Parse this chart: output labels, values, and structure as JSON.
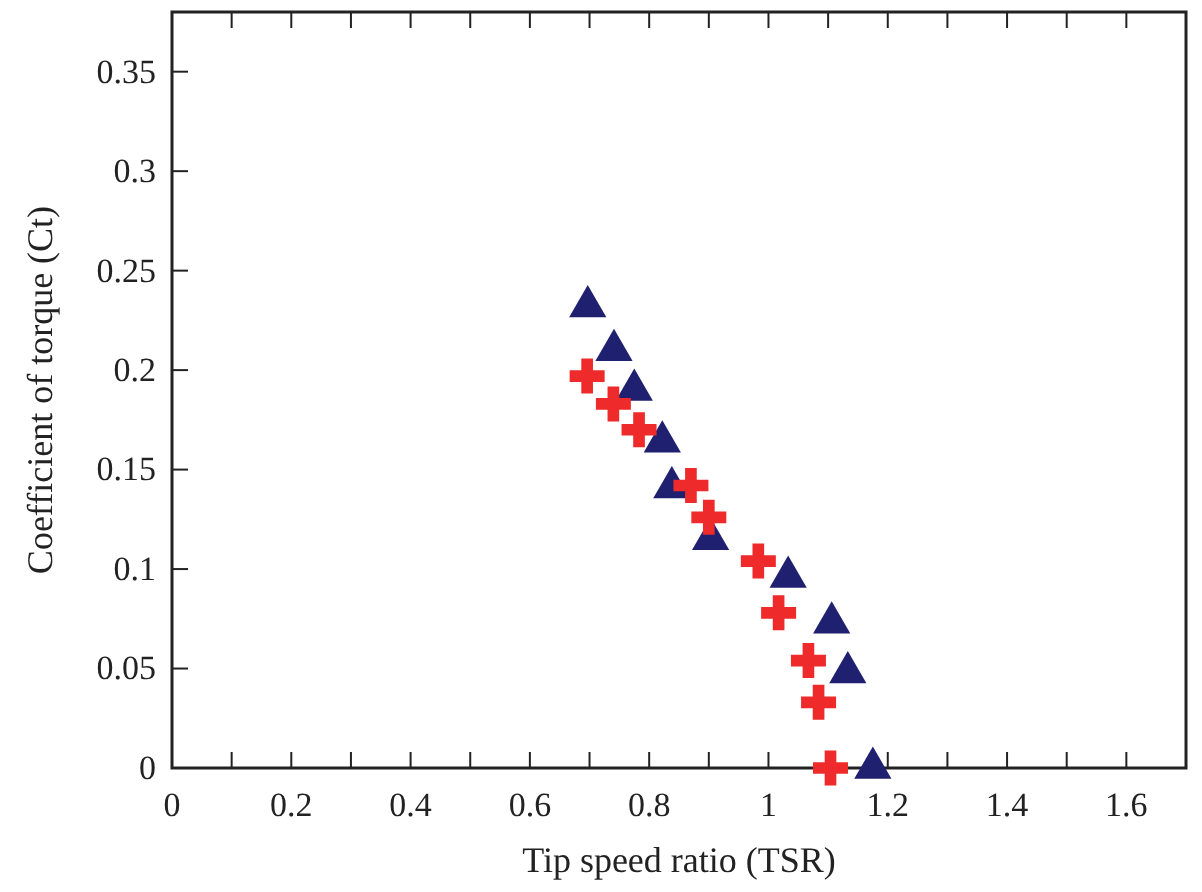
{
  "chart_data": {
    "type": "scatter",
    "xlabel": "Tip speed ratio (TSR)",
    "ylabel": "Coefficient of torque (Ct)",
    "xlim": [
      0,
      1.7
    ],
    "ylim": [
      0,
      0.38
    ],
    "xticks": [
      0,
      {
        "value": 0.1,
        "label": null
      },
      0.2,
      {
        "value": 0.3,
        "label": null
      },
      0.4,
      {
        "value": 0.5,
        "label": null
      },
      0.6,
      {
        "value": 0.7,
        "label": null
      },
      0.8,
      {
        "value": 0.9,
        "label": null
      },
      1,
      {
        "value": 1.1,
        "label": null
      },
      1.2,
      {
        "value": 1.3,
        "label": null
      },
      1.4,
      {
        "value": 1.5,
        "label": null
      },
      1.6
    ],
    "yticks": [
      0,
      0.05,
      0.1,
      0.15,
      0.2,
      0.25,
      0.3,
      0.35
    ],
    "grid": false,
    "series": [
      {
        "color": "#1f2170",
        "marker": "triangle",
        "x": [
          0.697,
          0.741,
          0.775,
          0.822,
          0.838,
          0.903,
          1.033,
          1.106,
          1.133,
          1.175
        ],
        "values": [
          0.232,
          0.21,
          0.19,
          0.164,
          0.141,
          0.115,
          0.096,
          0.073,
          0.048,
          0
        ]
      },
      {
        "color": "#ee2a2a",
        "marker": "cross",
        "x": [
          0.696,
          0.74,
          0.783,
          0.87,
          0.9,
          0.983,
          1.017,
          1.067,
          1.084,
          1.104
        ],
        "values": [
          0.197,
          0.183,
          0.17,
          0.142,
          0.126,
          0.104,
          0.078,
          0.054,
          0.033,
          0
        ]
      }
    ]
  }
}
